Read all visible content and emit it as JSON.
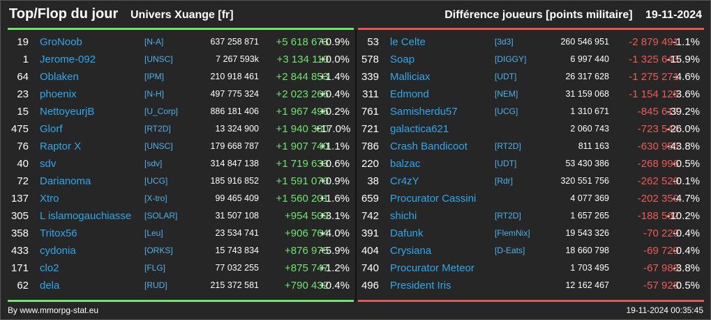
{
  "header": {
    "title": "Top/Flop du jour",
    "subtitle": "Univers Xuange [fr]",
    "metric": "Différence joueurs [points militaire]",
    "date": "19-11-2024"
  },
  "colors": {
    "positive": "#6ee66e",
    "negative": "#ef5b55",
    "name": "#2ea8f0",
    "background": "#262626"
  },
  "top": [
    {
      "rank": "19",
      "name": "GroNoob",
      "alliance": "[N-A]",
      "points": "637 258 871",
      "diff": "+5 618 673",
      "pct": "+0.9%"
    },
    {
      "rank": "1",
      "name": "Jerome-092",
      "alliance": "[UNSC]",
      "points": "7 267 593k",
      "diff": "+3 134 110",
      "pct": "+0.0%"
    },
    {
      "rank": "64",
      "name": "Oblaken",
      "alliance": "[IPM]",
      "points": "210 918 461",
      "diff": "+2 844 853",
      "pct": "+1.4%"
    },
    {
      "rank": "23",
      "name": "phoenix",
      "alliance": "[N-H]",
      "points": "497 775 324",
      "diff": "+2 023 266",
      "pct": "+0.4%"
    },
    {
      "rank": "15",
      "name": "NettoyeurjB",
      "alliance": "[U_Corp]",
      "points": "886 181 406",
      "diff": "+1 967 496",
      "pct": "+0.2%"
    },
    {
      "rank": "475",
      "name": "Glorf",
      "alliance": "[RT2D]",
      "points": "13 324 900",
      "diff": "+1 940 380",
      "pct": "+17.0%"
    },
    {
      "rank": "76",
      "name": "Raptor X",
      "alliance": "[UNSC]",
      "points": "179 668 787",
      "diff": "+1 907 740",
      "pct": "+1.1%"
    },
    {
      "rank": "40",
      "name": "sdv",
      "alliance": "[sdv]",
      "points": "314 847 138",
      "diff": "+1 719 633",
      "pct": "+0.6%"
    },
    {
      "rank": "72",
      "name": "Darianoma",
      "alliance": "[UCG]",
      "points": "185 916 852",
      "diff": "+1 591 070",
      "pct": "+0.9%"
    },
    {
      "rank": "137",
      "name": "Xtro",
      "alliance": "[X-tro]",
      "points": "99 465 409",
      "diff": "+1 560 201",
      "pct": "+1.6%"
    },
    {
      "rank": "305",
      "name": "L islamogauchiasse",
      "alliance": "[SOLAR]",
      "points": "31 507 108",
      "diff": "+954 509",
      "pct": "+3.1%"
    },
    {
      "rank": "358",
      "name": "Tritox56",
      "alliance": "[Leu]",
      "points": "23 534 741",
      "diff": "+906 764",
      "pct": "+4.0%"
    },
    {
      "rank": "433",
      "name": "cydonia",
      "alliance": "[ORKS]",
      "points": "15 743 834",
      "diff": "+876 975",
      "pct": "+5.9%"
    },
    {
      "rank": "171",
      "name": "clo2",
      "alliance": "[FLG]",
      "points": "77 032 255",
      "diff": "+875 747",
      "pct": "+1.2%"
    },
    {
      "rank": "62",
      "name": "dela",
      "alliance": "[RUD]",
      "points": "215 372 581",
      "diff": "+790 432",
      "pct": "+0.4%"
    }
  ],
  "flop": [
    {
      "rank": "53",
      "name": "le Celte",
      "alliance": "[3d3]",
      "points": "260 546 951",
      "diff": "-2 879 491",
      "pct": "-1.1%"
    },
    {
      "rank": "578",
      "name": "Soap",
      "alliance": "[DIGGY]",
      "points": "6 997 440",
      "diff": "-1 325 643",
      "pct": "-15.9%"
    },
    {
      "rank": "339",
      "name": "Malliciax",
      "alliance": "[UDT]",
      "points": "26 317 628",
      "diff": "-1 275 271",
      "pct": "-4.6%"
    },
    {
      "rank": "311",
      "name": "Edmond",
      "alliance": "[NEM]",
      "points": "31 159 068",
      "diff": "-1 154 125",
      "pct": "-3.6%"
    },
    {
      "rank": "761",
      "name": "Samisherdu57",
      "alliance": "[UCG]",
      "points": "1 310 671",
      "diff": "-845 617",
      "pct": "-39.2%"
    },
    {
      "rank": "721",
      "name": "galactica621",
      "alliance": "",
      "points": "2 060 743",
      "diff": "-723 544",
      "pct": "-26.0%"
    },
    {
      "rank": "786",
      "name": "Crash Bandicoot",
      "alliance": "[RT2D]",
      "points": "811 163",
      "diff": "-630 956",
      "pct": "-43.8%"
    },
    {
      "rank": "220",
      "name": "balzac",
      "alliance": "[UDT]",
      "points": "53 430 386",
      "diff": "-268 996",
      "pct": "-0.5%"
    },
    {
      "rank": "38",
      "name": "Cr4zY",
      "alliance": "[Rdr]",
      "points": "320 551 756",
      "diff": "-262 529",
      "pct": "-0.1%"
    },
    {
      "rank": "659",
      "name": "Procurator Cassini",
      "alliance": "",
      "points": "4 077 369",
      "diff": "-202 350",
      "pct": "-4.7%"
    },
    {
      "rank": "742",
      "name": "shichi",
      "alliance": "[RT2D]",
      "points": "1 657 265",
      "diff": "-188 562",
      "pct": "-10.2%"
    },
    {
      "rank": "391",
      "name": "Dafunk",
      "alliance": "[FlemNix]",
      "points": "19 543 326",
      "diff": "-70 229",
      "pct": "-0.4%"
    },
    {
      "rank": "404",
      "name": "Crysiana",
      "alliance": "[D-Eats]",
      "points": "18 660 798",
      "diff": "-69 729",
      "pct": "-0.4%"
    },
    {
      "rank": "740",
      "name": "Procurator Meteor",
      "alliance": "",
      "points": "1 703 495",
      "diff": "-67 988",
      "pct": "-3.8%"
    },
    {
      "rank": "496",
      "name": "President Iris",
      "alliance": "",
      "points": "12 162 467",
      "diff": "-57 928",
      "pct": "-0.5%"
    }
  ],
  "footer": {
    "credit": "By www.mmorpg-stat.eu",
    "timestamp": "19-11-2024 00:35:45"
  }
}
